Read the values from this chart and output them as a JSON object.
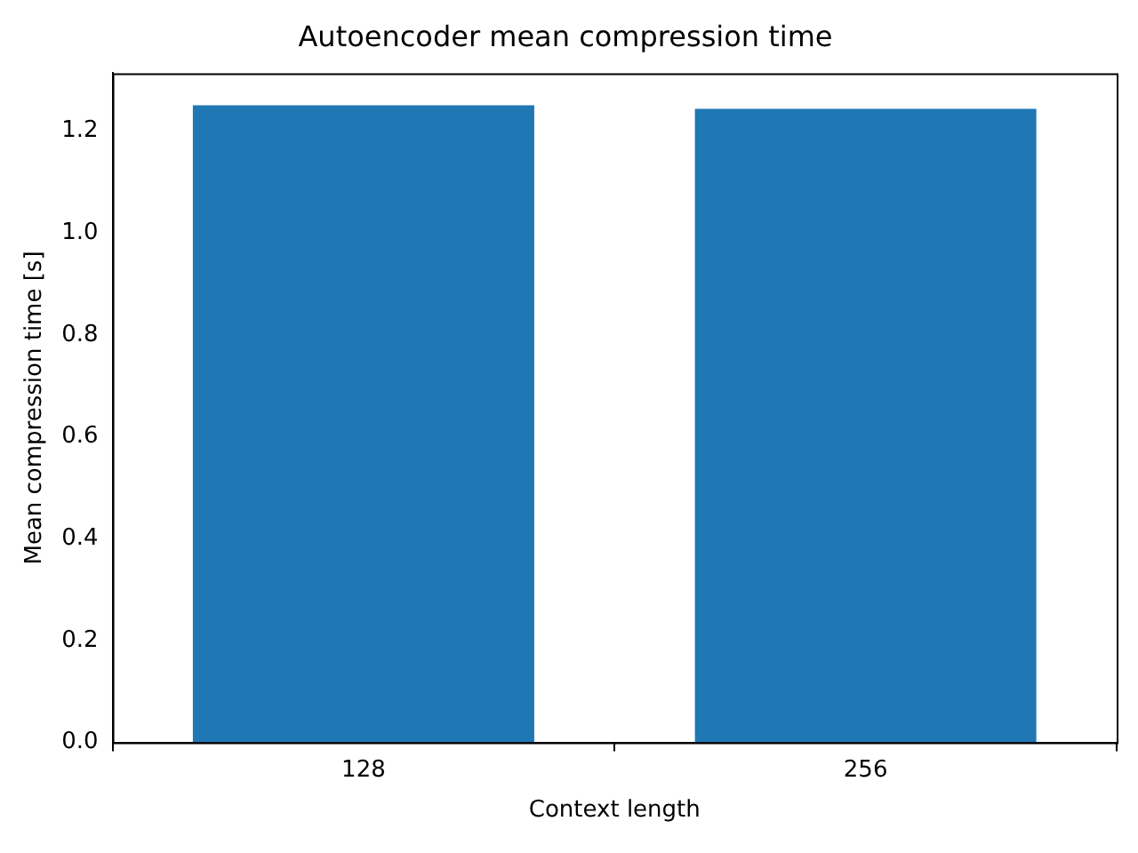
{
  "chart_data": {
    "type": "bar",
    "title": "Autoencoder mean compression time",
    "xlabel": "Context length",
    "ylabel": "Mean compression time [s]",
    "categories": [
      "128",
      "256"
    ],
    "values": [
      1.251,
      1.244
    ],
    "color": "#1f77b4",
    "ylim": [
      0,
      1.314
    ],
    "yticks": [
      {
        "value": 0,
        "label": "0.0"
      },
      {
        "value": 0.2,
        "label": "0.2"
      },
      {
        "value": 0.4,
        "label": "0.4"
      },
      {
        "value": 0.6,
        "label": "0.6"
      },
      {
        "value": 0.8,
        "label": "0.8"
      },
      {
        "value": 1.0,
        "label": "1.0"
      },
      {
        "value": 1.2,
        "label": "1.2"
      }
    ],
    "grid": false,
    "legend": false
  }
}
